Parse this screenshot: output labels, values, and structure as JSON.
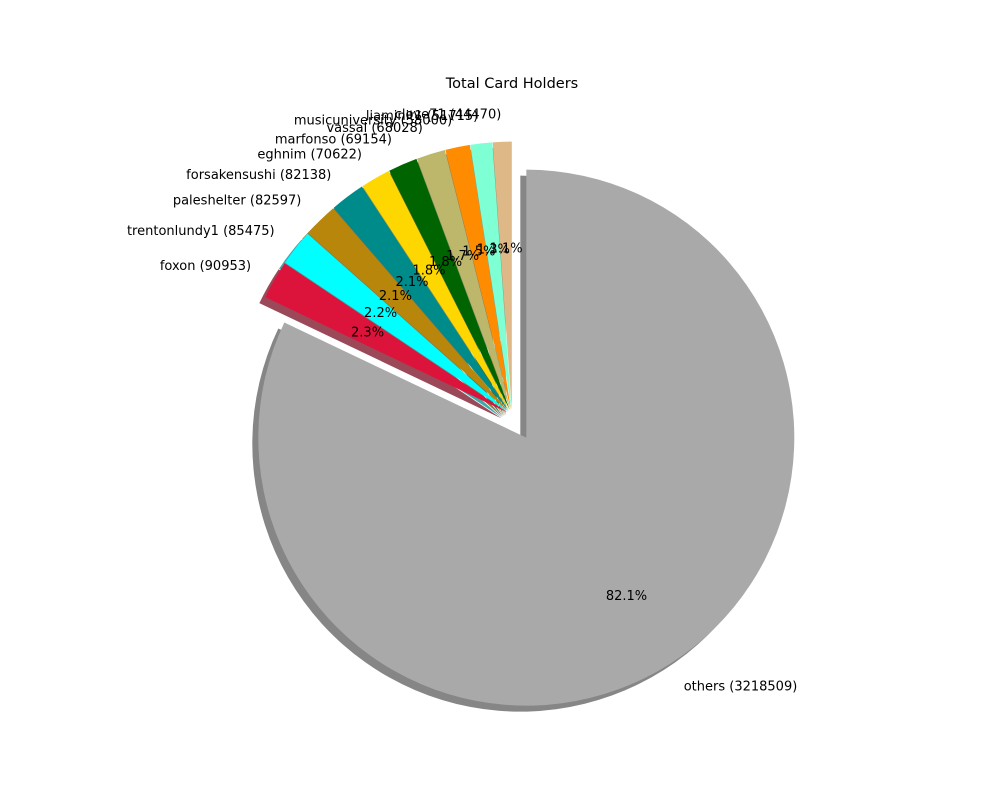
{
  "chart_data": {
    "type": "pie",
    "title": "Total Card Holders",
    "start_angle_deg": 90,
    "direction": "counterclockwise",
    "shadow": true,
    "slices": [
      {
        "name": "clove71",
        "value": 44470,
        "label": "clove71 (44470)",
        "pct_label": "1.1%",
        "color": "#DEB887"
      },
      {
        "name": "liaminit1",
        "value": 51715,
        "label": "liaminit1 (51715)",
        "pct_label": "1.3%",
        "color": "#7FFFD4"
      },
      {
        "name": "musicuniversity",
        "value": 58000,
        "label": "musicuniversity (58000)",
        "pct_label": "1.5%",
        "color": "#FF8C00"
      },
      {
        "name": "vassal",
        "value": 68028,
        "label": "vassal (68028)",
        "pct_label": "1.7%",
        "color": "#BDB76B"
      },
      {
        "name": "marfonso",
        "value": 69154,
        "label": "marfonso (69154)",
        "pct_label": "1.8%",
        "color": "#006400"
      },
      {
        "name": "eghnim",
        "value": 70622,
        "label": "eghnim (70622)",
        "pct_label": "1.8%",
        "color": "#FFD700"
      },
      {
        "name": "forsakensushi",
        "value": 82138,
        "label": "forsakensushi (82138)",
        "pct_label": "2.1%",
        "color": "#008B8B"
      },
      {
        "name": "paleshelter",
        "value": 82597,
        "label": "paleshelter (82597)",
        "pct_label": "2.1%",
        "color": "#B8860B"
      },
      {
        "name": "trentonlundy1",
        "value": 85475,
        "label": "trentonlundy1 (85475)",
        "pct_label": "2.2%",
        "color": "#00FFFF"
      },
      {
        "name": "foxon",
        "value": 90953,
        "label": "foxon (90953)",
        "pct_label": "2.3%",
        "color": "#DC143C"
      },
      {
        "name": "others",
        "value": 3218509,
        "label": "others (3218509)",
        "pct_label": "82.1%",
        "color": "#A9A9A9"
      }
    ]
  }
}
